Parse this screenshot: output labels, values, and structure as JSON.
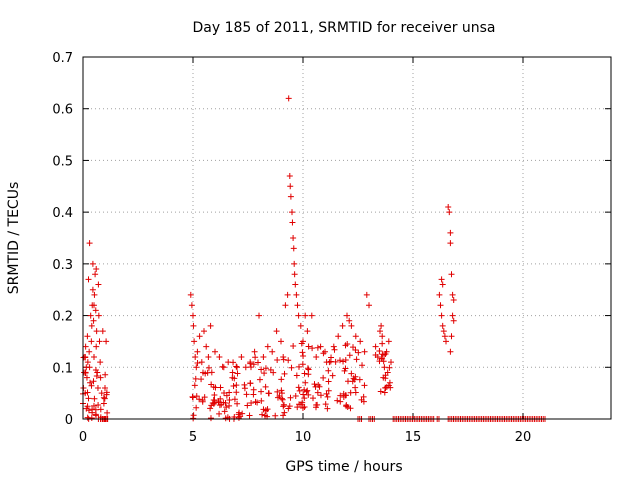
{
  "chart_data": {
    "type": "scatter",
    "title": "Day 185 of 2011, SRMTID for receiver unsa",
    "xlabel": "GPS time / hours",
    "ylabel": "SRMTID / TECUs",
    "xlim": [
      0,
      24
    ],
    "ylim": [
      0,
      0.7
    ],
    "xticks": [
      0,
      5,
      10,
      15,
      20
    ],
    "yticks": [
      0,
      0.1,
      0.2,
      0.3,
      0.4,
      0.5,
      0.6,
      0.7
    ],
    "ytick_labels": [
      "0",
      "0.1",
      "0.2",
      "0.3",
      "0.4",
      "0.5",
      "0.6",
      "0.7"
    ],
    "grid": true,
    "marker": "+",
    "color": "#e00000",
    "series": [
      {
        "name": "SRMTID",
        "points": [
          [
            0.0,
            0.03
          ],
          [
            0.02,
            0.06
          ],
          [
            0.05,
            0.09
          ],
          [
            0.08,
            0.12
          ],
          [
            0.1,
            0.05
          ],
          [
            0.12,
            0.14
          ],
          [
            0.15,
            0.02
          ],
          [
            0.18,
            0.08
          ],
          [
            0.2,
            0.16
          ],
          [
            0.22,
            0.11
          ],
          [
            0.25,
            0.04
          ],
          [
            0.28,
            0.13
          ],
          [
            0.3,
            0.1
          ],
          [
            0.32,
            0.07
          ],
          [
            0.35,
            0.2
          ],
          [
            0.38,
            0.15
          ],
          [
            0.4,
            0.18
          ],
          [
            0.42,
            0.22
          ],
          [
            0.45,
            0.25
          ],
          [
            0.48,
            0.19
          ],
          [
            0.5,
            0.12
          ],
          [
            0.52,
            0.24
          ],
          [
            0.55,
            0.28
          ],
          [
            0.58,
            0.21
          ],
          [
            0.6,
            0.14
          ],
          [
            0.62,
            0.17
          ],
          [
            0.65,
            0.09
          ],
          [
            0.68,
            0.06
          ],
          [
            0.7,
            0.26
          ],
          [
            0.72,
            0.2
          ],
          [
            0.75,
            0.15
          ],
          [
            0.78,
            0.11
          ],
          [
            0.8,
            0.08
          ],
          [
            0.85,
            0.05
          ],
          [
            0.9,
            0.17
          ],
          [
            0.95,
            0.03
          ],
          [
            1.0,
            0.06
          ],
          [
            1.05,
            0.15
          ],
          [
            0.3,
            0.34
          ],
          [
            0.45,
            0.3
          ],
          [
            0.6,
            0.29
          ],
          [
            0.25,
            0.27
          ],
          [
            0.5,
            0.22
          ],
          [
            0.15,
            0.1
          ],
          [
            0.1,
            0.12
          ],
          [
            0.7,
            0.0
          ],
          [
            0.8,
            0.0
          ],
          [
            0.9,
            0.0
          ],
          [
            1.0,
            0.0
          ],
          [
            1.1,
            0.0
          ],
          [
            4.9,
            0.24
          ],
          [
            4.95,
            0.22
          ],
          [
            5.0,
            0.2
          ],
          [
            5.02,
            0.18
          ],
          [
            5.05,
            0.15
          ],
          [
            5.1,
            0.12
          ],
          [
            5.15,
            0.1
          ],
          [
            5.2,
            0.13
          ],
          [
            5.3,
            0.16
          ],
          [
            5.4,
            0.11
          ],
          [
            5.5,
            0.17
          ],
          [
            5.6,
            0.14
          ],
          [
            5.7,
            0.12
          ],
          [
            5.8,
            0.18
          ],
          [
            6.0,
            0.13
          ],
          [
            6.2,
            0.12
          ],
          [
            6.4,
            0.1
          ],
          [
            6.6,
            0.11
          ],
          [
            6.8,
            0.09
          ],
          [
            7.0,
            0.1
          ],
          [
            7.2,
            0.12
          ],
          [
            7.4,
            0.1
          ],
          [
            7.6,
            0.11
          ],
          [
            7.8,
            0.13
          ],
          [
            8.0,
            0.2
          ],
          [
            8.2,
            0.12
          ],
          [
            8.4,
            0.14
          ],
          [
            8.6,
            0.13
          ],
          [
            8.8,
            0.17
          ],
          [
            9.0,
            0.15
          ],
          [
            9.1,
            0.12
          ],
          [
            9.2,
            0.22
          ],
          [
            9.3,
            0.24
          ],
          [
            9.35,
            0.62
          ],
          [
            9.4,
            0.47
          ],
          [
            9.42,
            0.45
          ],
          [
            9.45,
            0.43
          ],
          [
            9.5,
            0.4
          ],
          [
            9.52,
            0.38
          ],
          [
            9.55,
            0.35
          ],
          [
            9.58,
            0.33
          ],
          [
            9.6,
            0.3
          ],
          [
            9.62,
            0.28
          ],
          [
            9.65,
            0.26
          ],
          [
            9.7,
            0.24
          ],
          [
            9.75,
            0.22
          ],
          [
            9.8,
            0.2
          ],
          [
            9.9,
            0.18
          ],
          [
            10.0,
            0.15
          ],
          [
            10.1,
            0.2
          ],
          [
            10.2,
            0.17
          ],
          [
            10.4,
            0.2
          ],
          [
            10.6,
            0.12
          ],
          [
            10.8,
            0.14
          ],
          [
            11.0,
            0.13
          ],
          [
            11.2,
            0.11
          ],
          [
            11.4,
            0.14
          ],
          [
            11.6,
            0.16
          ],
          [
            11.8,
            0.18
          ],
          [
            12.0,
            0.2
          ],
          [
            12.1,
            0.19
          ],
          [
            12.2,
            0.18
          ],
          [
            12.4,
            0.16
          ],
          [
            12.6,
            0.15
          ],
          [
            12.8,
            0.13
          ],
          [
            12.9,
            0.24
          ],
          [
            13.0,
            0.22
          ],
          [
            13.3,
            0.14
          ],
          [
            13.4,
            0.12
          ],
          [
            13.5,
            0.17
          ],
          [
            13.6,
            0.16
          ],
          [
            13.7,
            0.1
          ],
          [
            13.8,
            0.13
          ],
          [
            13.9,
            0.15
          ],
          [
            14.0,
            0.11
          ],
          [
            13.55,
            0.18
          ],
          [
            13.65,
            0.08
          ],
          [
            13.75,
            0.06
          ],
          [
            13.85,
            0.09
          ],
          [
            16.2,
            0.24
          ],
          [
            16.25,
            0.22
          ],
          [
            16.3,
            0.2
          ],
          [
            16.35,
            0.18
          ],
          [
            16.4,
            0.17
          ],
          [
            16.45,
            0.16
          ],
          [
            16.3,
            0.27
          ],
          [
            16.35,
            0.26
          ],
          [
            16.5,
            0.15
          ],
          [
            16.6,
            0.41
          ],
          [
            16.65,
            0.4
          ],
          [
            16.7,
            0.36
          ],
          [
            16.7,
            0.34
          ],
          [
            16.75,
            0.28
          ],
          [
            16.8,
            0.24
          ],
          [
            16.8,
            0.2
          ],
          [
            16.85,
            0.19
          ],
          [
            16.75,
            0.16
          ],
          [
            16.7,
            0.13
          ],
          [
            16.85,
            0.23
          ]
        ]
      }
    ],
    "zero_band_ranges": [
      [
        0.8,
        1.2
      ],
      [
        12.5,
        12.7
      ],
      [
        13.0,
        13.3
      ],
      [
        14.1,
        16.0
      ],
      [
        16.1,
        16.2
      ],
      [
        16.6,
        21.0
      ]
    ]
  }
}
